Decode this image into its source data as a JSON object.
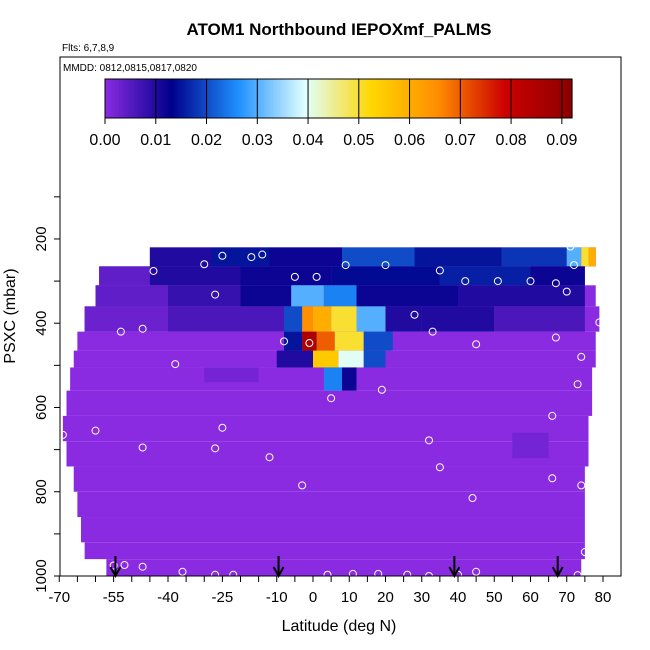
{
  "chart_data": {
    "type": "heatmap",
    "title": "ATOM1 Northbound IEPOXmf_PALMS",
    "subtitle_flights": "Flts: 6,7,8,9",
    "subtitle_dates": "MMDD: 0812,0815,0817,0820",
    "xlabel": "Latitude (deg N)",
    "ylabel": "PSXC (mbar)",
    "xlim": [
      -70,
      80
    ],
    "ylim": [
      1000,
      100
    ],
    "x_ticks": [
      -70,
      -55,
      -40,
      -25,
      -10,
      0,
      10,
      20,
      30,
      40,
      50,
      60,
      70,
      80
    ],
    "y_ticks": [
      200,
      400,
      600,
      800,
      1000
    ],
    "colorbar": {
      "ticks": [
        "0.00",
        "0.01",
        "0.02",
        "0.03",
        "0.04",
        "0.05",
        "0.06",
        "0.07",
        "0.08",
        "0.09"
      ],
      "range": [
        0,
        0.092
      ],
      "colors": [
        "#8a2be2",
        "#00008b",
        "#1e90ff",
        "#e0ffff",
        "#ffd700",
        "#ff8c00",
        "#cc0000",
        "#8b0000"
      ]
    },
    "background_value": 0.0,
    "cells": [
      {
        "lat": [
          -45,
          -28
        ],
        "p": [
          220,
          265
        ],
        "value": 0.01
      },
      {
        "lat": [
          -28,
          -12
        ],
        "p": [
          220,
          265
        ],
        "value": 0.015
      },
      {
        "lat": [
          -12,
          8
        ],
        "p": [
          220,
          265
        ],
        "value": 0.012
      },
      {
        "lat": [
          8,
          28
        ],
        "p": [
          220,
          265
        ],
        "value": 0.02
      },
      {
        "lat": [
          28,
          52
        ],
        "p": [
          220,
          265
        ],
        "value": 0.015
      },
      {
        "lat": [
          52,
          70
        ],
        "p": [
          220,
          265
        ],
        "value": 0.018
      },
      {
        "lat": [
          70,
          74
        ],
        "p": [
          220,
          265
        ],
        "value": 0.03
      },
      {
        "lat": [
          74,
          76
        ],
        "p": [
          220,
          265
        ],
        "value": 0.05
      },
      {
        "lat": [
          76,
          78
        ],
        "p": [
          220,
          265
        ],
        "value": 0.06
      },
      {
        "lat": [
          -59,
          -45
        ],
        "p": [
          265,
          310
        ],
        "value": 0.004
      },
      {
        "lat": [
          -45,
          -20
        ],
        "p": [
          265,
          310
        ],
        "value": 0.01
      },
      {
        "lat": [
          -20,
          5
        ],
        "p": [
          265,
          310
        ],
        "value": 0.012
      },
      {
        "lat": [
          5,
          35
        ],
        "p": [
          265,
          310
        ],
        "value": 0.014
      },
      {
        "lat": [
          35,
          60
        ],
        "p": [
          265,
          310
        ],
        "value": 0.016
      },
      {
        "lat": [
          60,
          75
        ],
        "p": [
          265,
          310
        ],
        "value": 0.012
      },
      {
        "lat": [
          -60,
          -40
        ],
        "p": [
          310,
          360
        ],
        "value": 0.004
      },
      {
        "lat": [
          -40,
          -20
        ],
        "p": [
          310,
          360
        ],
        "value": 0.008
      },
      {
        "lat": [
          -20,
          -6
        ],
        "p": [
          310,
          360
        ],
        "value": 0.012
      },
      {
        "lat": [
          -6,
          3
        ],
        "p": [
          310,
          360
        ],
        "value": 0.03
      },
      {
        "lat": [
          3,
          12
        ],
        "p": [
          310,
          360
        ],
        "value": 0.025
      },
      {
        "lat": [
          12,
          40
        ],
        "p": [
          310,
          360
        ],
        "value": 0.012
      },
      {
        "lat": [
          40,
          75
        ],
        "p": [
          310,
          360
        ],
        "value": 0.01
      },
      {
        "lat": [
          -63,
          -40
        ],
        "p": [
          360,
          420
        ],
        "value": 0.003
      },
      {
        "lat": [
          -40,
          -8
        ],
        "p": [
          360,
          420
        ],
        "value": 0.006
      },
      {
        "lat": [
          -8,
          -3
        ],
        "p": [
          360,
          420
        ],
        "value": 0.02
      },
      {
        "lat": [
          -3,
          0
        ],
        "p": [
          360,
          420
        ],
        "value": 0.065
      },
      {
        "lat": [
          0,
          5
        ],
        "p": [
          360,
          420
        ],
        "value": 0.06
      },
      {
        "lat": [
          5,
          12
        ],
        "p": [
          360,
          420
        ],
        "value": 0.05
      },
      {
        "lat": [
          12,
          20
        ],
        "p": [
          360,
          420
        ],
        "value": 0.03
      },
      {
        "lat": [
          20,
          30
        ],
        "p": [
          360,
          420
        ],
        "value": 0.01
      },
      {
        "lat": [
          30,
          50
        ],
        "p": [
          360,
          420
        ],
        "value": 0.01
      },
      {
        "lat": [
          50,
          75
        ],
        "p": [
          360,
          420
        ],
        "value": 0.006
      },
      {
        "lat": [
          -8,
          -3
        ],
        "p": [
          420,
          465
        ],
        "value": 0.015
      },
      {
        "lat": [
          -3,
          1
        ],
        "p": [
          420,
          465
        ],
        "value": 0.085
      },
      {
        "lat": [
          1,
          6
        ],
        "p": [
          420,
          465
        ],
        "value": 0.07
      },
      {
        "lat": [
          6,
          14
        ],
        "p": [
          420,
          465
        ],
        "value": 0.05
      },
      {
        "lat": [
          14,
          22
        ],
        "p": [
          420,
          465
        ],
        "value": 0.02
      },
      {
        "lat": [
          -10,
          0
        ],
        "p": [
          465,
          505
        ],
        "value": 0.01
      },
      {
        "lat": [
          0,
          7
        ],
        "p": [
          465,
          505
        ],
        "value": 0.055
      },
      {
        "lat": [
          7,
          14
        ],
        "p": [
          465,
          505
        ],
        "value": 0.04
      },
      {
        "lat": [
          14,
          20
        ],
        "p": [
          465,
          505
        ],
        "value": 0.02
      },
      {
        "lat": [
          3,
          8
        ],
        "p": [
          505,
          560
        ],
        "value": 0.025
      },
      {
        "lat": [
          8,
          12
        ],
        "p": [
          505,
          560
        ],
        "value": 0.012
      },
      {
        "lat": [
          -30,
          -15
        ],
        "p": [
          505,
          540
        ],
        "value": 0.002
      },
      {
        "lat": [
          55,
          65
        ],
        "p": [
          660,
          720
        ],
        "value": 0.002
      }
    ],
    "coverage_rows": [
      {
        "p": [
          220,
          265
        ],
        "lat": [
          -45,
          78
        ]
      },
      {
        "p": [
          265,
          310
        ],
        "lat": [
          -59,
          75
        ]
      },
      {
        "p": [
          310,
          360
        ],
        "lat": [
          -60,
          78
        ]
      },
      {
        "p": [
          360,
          420
        ],
        "lat": [
          -63,
          79
        ]
      },
      {
        "p": [
          420,
          465
        ],
        "lat": [
          -65,
          78
        ]
      },
      {
        "lat": [
          -66,
          78
        ],
        "p": [
          465,
          505
        ]
      },
      {
        "lat": [
          -67,
          77
        ],
        "p": [
          505,
          560
        ]
      },
      {
        "lat": [
          -68,
          77
        ],
        "p": [
          560,
          620
        ]
      },
      {
        "lat": [
          -69,
          76
        ],
        "p": [
          620,
          680
        ]
      },
      {
        "lat": [
          -68,
          76
        ],
        "p": [
          680,
          740
        ]
      },
      {
        "lat": [
          -66,
          75
        ],
        "p": [
          740,
          800
        ]
      },
      {
        "lat": [
          -65,
          75
        ],
        "p": [
          800,
          860
        ]
      },
      {
        "lat": [
          -64,
          75
        ],
        "p": [
          860,
          920
        ]
      },
      {
        "lat": [
          -63,
          75
        ],
        "p": [
          920,
          960
        ]
      },
      {
        "lat": [
          -57,
          74
        ],
        "p": [
          960,
          1000
        ]
      }
    ],
    "sample_points": [
      {
        "lat": -25,
        "p": 240
      },
      {
        "lat": -14,
        "p": 237
      },
      {
        "lat": -17,
        "p": 243
      },
      {
        "lat": -30,
        "p": 260
      },
      {
        "lat": -5,
        "p": 290
      },
      {
        "lat": 1,
        "p": 290
      },
      {
        "lat": 9,
        "p": 262
      },
      {
        "lat": 20,
        "p": 262
      },
      {
        "lat": 35,
        "p": 275
      },
      {
        "lat": 42,
        "p": 300
      },
      {
        "lat": 51,
        "p": 300
      },
      {
        "lat": 60,
        "p": 300
      },
      {
        "lat": 67,
        "p": 305
      },
      {
        "lat": 72,
        "p": 262
      },
      {
        "lat": 71,
        "p": 218
      },
      {
        "lat": -65,
        "p": 302
      },
      {
        "lat": -44,
        "p": 276
      },
      {
        "lat": -27,
        "p": 332
      },
      {
        "lat": 70,
        "p": 325
      },
      {
        "lat": 79,
        "p": 398
      },
      {
        "lat": -53,
        "p": 420
      },
      {
        "lat": -47,
        "p": 413
      },
      {
        "lat": -8,
        "p": 443
      },
      {
        "lat": -1,
        "p": 447
      },
      {
        "lat": 28,
        "p": 380
      },
      {
        "lat": 33,
        "p": 420
      },
      {
        "lat": 45,
        "p": 450
      },
      {
        "lat": 67,
        "p": 434
      },
      {
        "lat": 74,
        "p": 480
      },
      {
        "lat": -38,
        "p": 497
      },
      {
        "lat": 73,
        "p": 545
      },
      {
        "lat": 19,
        "p": 558
      },
      {
        "lat": 5,
        "p": 578
      },
      {
        "lat": 66,
        "p": 620
      },
      {
        "lat": -69,
        "p": 665
      },
      {
        "lat": -60,
        "p": 655
      },
      {
        "lat": -25,
        "p": 648
      },
      {
        "lat": -47,
        "p": 695
      },
      {
        "lat": -27,
        "p": 697
      },
      {
        "lat": 32,
        "p": 678
      },
      {
        "lat": -12,
        "p": 718
      },
      {
        "lat": 35,
        "p": 742
      },
      {
        "lat": 66,
        "p": 768
      },
      {
        "lat": 74,
        "p": 785
      },
      {
        "lat": -3,
        "p": 785
      },
      {
        "lat": 44,
        "p": 815
      },
      {
        "lat": 75,
        "p": 943
      },
      {
        "lat": -55,
        "p": 975
      },
      {
        "lat": -52,
        "p": 974
      },
      {
        "lat": -47,
        "p": 978
      },
      {
        "lat": -36,
        "p": 990
      },
      {
        "lat": -27,
        "p": 997
      },
      {
        "lat": -22,
        "p": 997
      },
      {
        "lat": 4,
        "p": 997
      },
      {
        "lat": 11,
        "p": 995
      },
      {
        "lat": 18,
        "p": 995
      },
      {
        "lat": 26,
        "p": 997
      },
      {
        "lat": 32,
        "p": 1000
      },
      {
        "lat": 40,
        "p": 997
      },
      {
        "lat": 45,
        "p": 990
      },
      {
        "lat": 73,
        "p": 998
      }
    ],
    "flight_markers": [
      -54.5,
      -9.5,
      39,
      67.5
    ]
  }
}
